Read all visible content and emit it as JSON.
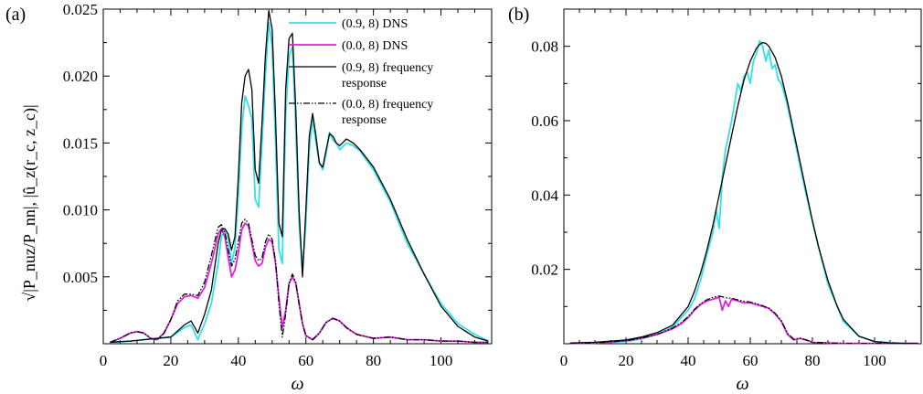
{
  "chart_data": [
    {
      "type": "line",
      "panel_label": "(a)",
      "xlabel": "ω",
      "ylabel": "√|P_nuz/P_nn|, |û_z(r_c, z_c)|",
      "xlim": [
        0,
        115
      ],
      "ylim": [
        0,
        0.025
      ],
      "x_ticks": [
        "0",
        "20",
        "40",
        "60",
        "80",
        "100"
      ],
      "x_tick_values": [
        0,
        20,
        40,
        60,
        80,
        100
      ],
      "y_ticks": [
        "0.005",
        "0.010",
        "0.015",
        "0.020",
        "0.025"
      ],
      "y_tick_values": [
        0.005,
        0.01,
        0.015,
        0.02,
        0.025
      ],
      "legend_placement": "top-right",
      "series": [
        {
          "name": "(0.9, 8) DNS",
          "color": "#33e0e8",
          "style": "solid",
          "x": [
            2,
            8,
            12,
            16,
            20,
            24,
            26,
            28,
            30,
            32,
            34,
            35,
            36,
            37,
            38,
            39,
            40,
            41,
            42,
            43,
            44,
            45,
            46,
            47,
            48,
            49,
            50,
            51,
            52,
            53,
            54,
            55,
            56,
            57,
            58,
            59,
            60,
            61,
            62,
            63,
            64,
            65,
            66,
            67,
            68,
            69,
            70,
            72,
            74,
            76,
            80,
            85,
            90,
            95,
            100,
            105,
            110,
            114
          ],
          "y": [
            0.0001,
            0.0002,
            0.0003,
            0.0004,
            0.0005,
            0.0012,
            0.0014,
            0.0003,
            0.0015,
            0.003,
            0.006,
            0.008,
            0.0084,
            0.0078,
            0.006,
            0.0072,
            0.011,
            0.016,
            0.0185,
            0.0178,
            0.0168,
            0.0108,
            0.0102,
            0.015,
            0.02,
            0.024,
            0.0222,
            0.015,
            0.007,
            0.006,
            0.017,
            0.0215,
            0.0222,
            0.016,
            0.009,
            0.0055,
            0.009,
            0.0145,
            0.0168,
            0.015,
            0.0135,
            0.013,
            0.0142,
            0.0158,
            0.0152,
            0.015,
            0.0145,
            0.015,
            0.0148,
            0.0144,
            0.013,
            0.0106,
            0.0075,
            0.0052,
            0.003,
            0.0015,
            0.0007,
            0.0002
          ]
        },
        {
          "name": "(0.0, 8) DNS",
          "color": "#e020e0",
          "style": "solid",
          "x": [
            2,
            5,
            8,
            10,
            12,
            14,
            16,
            18,
            20,
            22,
            24,
            26,
            28,
            30,
            32,
            34,
            35,
            36,
            37,
            38,
            39,
            40,
            41,
            42,
            43,
            44,
            45,
            46,
            47,
            48,
            49,
            50,
            51,
            52,
            53,
            54,
            55,
            56,
            57,
            58,
            59,
            60,
            62,
            64,
            66,
            68,
            70,
            72,
            75,
            80,
            85,
            90,
            95,
            100,
            105,
            110,
            114
          ],
          "y": [
            0.0001,
            0.0004,
            0.0008,
            0.0009,
            0.0008,
            0.0004,
            0.0003,
            0.0008,
            0.0018,
            0.003,
            0.0035,
            0.0036,
            0.0034,
            0.0042,
            0.006,
            0.0082,
            0.0086,
            0.008,
            0.0065,
            0.005,
            0.0055,
            0.0068,
            0.0085,
            0.009,
            0.0088,
            0.0075,
            0.0062,
            0.0058,
            0.006,
            0.0072,
            0.0078,
            0.0076,
            0.006,
            0.0035,
            0.0012,
            0.0025,
            0.0045,
            0.005,
            0.0045,
            0.003,
            0.0015,
            0.0006,
            0.0003,
            0.0008,
            0.0016,
            0.0019,
            0.0017,
            0.0012,
            0.0007,
            0.0004,
            0.0005,
            0.0003,
            0.0003,
            0.0002,
            0.0002,
            0.0001,
            0.0001
          ]
        },
        {
          "name": "(0.9, 8) frequency response",
          "color": "#000000",
          "style": "solid",
          "x": [
            2,
            8,
            12,
            16,
            20,
            24,
            26,
            28,
            30,
            32,
            34,
            35,
            36,
            37,
            38,
            39,
            40,
            41,
            42,
            43,
            44,
            45,
            46,
            47,
            48,
            49,
            50,
            51,
            52,
            53,
            54,
            55,
            56,
            57,
            58,
            59,
            60,
            61,
            62,
            63,
            64,
            65,
            66,
            67,
            68,
            69,
            70,
            72,
            74,
            76,
            80,
            85,
            90,
            95,
            100,
            105,
            110,
            114
          ],
          "y": [
            0.0001,
            0.0002,
            0.0003,
            0.0004,
            0.0005,
            0.0014,
            0.0017,
            0.0008,
            0.0022,
            0.004,
            0.0075,
            0.0085,
            0.0086,
            0.0082,
            0.007,
            0.008,
            0.0125,
            0.018,
            0.02,
            0.0205,
            0.019,
            0.013,
            0.012,
            0.0165,
            0.0215,
            0.0249,
            0.0235,
            0.017,
            0.009,
            0.008,
            0.019,
            0.0228,
            0.0232,
            0.0175,
            0.01,
            0.005,
            0.01,
            0.0155,
            0.0172,
            0.0155,
            0.0135,
            0.0132,
            0.0145,
            0.0157,
            0.0155,
            0.015,
            0.0148,
            0.0153,
            0.015,
            0.0145,
            0.0132,
            0.0108,
            0.0078,
            0.0052,
            0.0028,
            0.0013,
            0.0005,
            0.0002
          ]
        },
        {
          "name": "(0.0, 8) frequency response",
          "color": "#000000",
          "style": "dashdotdot",
          "x": [
            2,
            5,
            8,
            10,
            12,
            14,
            16,
            18,
            20,
            22,
            24,
            26,
            28,
            30,
            32,
            34,
            35,
            36,
            37,
            38,
            39,
            40,
            41,
            42,
            43,
            44,
            45,
            46,
            47,
            48,
            49,
            50,
            51,
            52,
            53,
            54,
            55,
            56,
            57,
            58,
            59,
            60,
            62,
            64,
            66,
            68,
            70,
            72,
            75,
            80,
            85,
            90,
            95,
            100,
            105,
            110,
            114
          ],
          "y": [
            0.0001,
            0.0004,
            0.0008,
            0.0009,
            0.0008,
            0.0004,
            0.0003,
            0.0008,
            0.0018,
            0.0032,
            0.0037,
            0.0037,
            0.0036,
            0.0046,
            0.0066,
            0.0087,
            0.0089,
            0.0083,
            0.007,
            0.0058,
            0.0063,
            0.0076,
            0.009,
            0.0093,
            0.009,
            0.0078,
            0.0066,
            0.0062,
            0.0064,
            0.0076,
            0.0082,
            0.0078,
            0.0062,
            0.003,
            0.0005,
            0.0022,
            0.0045,
            0.0052,
            0.0046,
            0.003,
            0.0015,
            0.0006,
            0.0003,
            0.0008,
            0.0016,
            0.0019,
            0.0017,
            0.0012,
            0.0007,
            0.0004,
            0.0005,
            0.0003,
            0.0003,
            0.0002,
            0.0002,
            0.0001,
            0.0001
          ]
        }
      ]
    },
    {
      "type": "line",
      "panel_label": "(b)",
      "xlabel": "ω",
      "xlim": [
        0,
        115
      ],
      "ylim": [
        0,
        0.09
      ],
      "x_ticks": [
        "0",
        "20",
        "40",
        "60",
        "80",
        "100"
      ],
      "x_tick_values": [
        0,
        20,
        40,
        60,
        80,
        100
      ],
      "y_ticks": [
        "0.02",
        "0.04",
        "0.06",
        "0.08"
      ],
      "y_tick_values": [
        0.02,
        0.04,
        0.06,
        0.08
      ],
      "series": [
        {
          "name": "(0.9, 8) DNS",
          "color": "#33e0e8",
          "style": "solid",
          "x": [
            2,
            10,
            20,
            25,
            30,
            35,
            40,
            42,
            44,
            46,
            48,
            49,
            50,
            51,
            52,
            53,
            54,
            55,
            56,
            57,
            58,
            59,
            60,
            61,
            62,
            63,
            64,
            65,
            66,
            67,
            68,
            69,
            70,
            72,
            74,
            76,
            78,
            80,
            82,
            85,
            88,
            90,
            95,
            100,
            105,
            110,
            114
          ],
          "y": [
            0.0001,
            0.0002,
            0.0006,
            0.0013,
            0.0025,
            0.0045,
            0.009,
            0.012,
            0.017,
            0.024,
            0.03,
            0.036,
            0.031,
            0.045,
            0.052,
            0.056,
            0.06,
            0.065,
            0.07,
            0.068,
            0.072,
            0.073,
            0.07,
            0.076,
            0.078,
            0.0815,
            0.08,
            0.076,
            0.079,
            0.074,
            0.075,
            0.071,
            0.07,
            0.064,
            0.056,
            0.048,
            0.04,
            0.033,
            0.026,
            0.016,
            0.01,
            0.006,
            0.002,
            0.0006,
            0.0003,
            0.0001,
            0.0001
          ]
        },
        {
          "name": "(0.0, 8) DNS",
          "color": "#e020e0",
          "style": "solid",
          "x": [
            2,
            10,
            20,
            25,
            30,
            35,
            38,
            40,
            42,
            44,
            46,
            48,
            50,
            51,
            52,
            53,
            54,
            56,
            58,
            60,
            62,
            64,
            66,
            68,
            70,
            72,
            74,
            76,
            78,
            80,
            85,
            90,
            95,
            100,
            105,
            110,
            114
          ],
          "y": [
            0.0001,
            0.0002,
            0.0008,
            0.0015,
            0.0025,
            0.004,
            0.0055,
            0.007,
            0.009,
            0.0105,
            0.0115,
            0.012,
            0.0125,
            0.009,
            0.0115,
            0.01,
            0.012,
            0.0115,
            0.011,
            0.011,
            0.0105,
            0.01,
            0.0095,
            0.008,
            0.006,
            0.0025,
            0.001,
            0.0014,
            0.001,
            0.0004,
            0.0002,
            0.0001,
            0.0001,
            0.0001,
            0.0001,
            0.0001,
            0.0001
          ]
        },
        {
          "name": "(0.9, 8) frequency response",
          "color": "#000000",
          "style": "solid",
          "x": [
            2,
            10,
            20,
            25,
            30,
            35,
            40,
            42,
            44,
            46,
            48,
            50,
            52,
            54,
            56,
            58,
            60,
            62,
            63,
            64,
            65,
            66,
            68,
            70,
            72,
            74,
            76,
            78,
            80,
            82,
            85,
            88,
            90,
            95,
            100,
            105,
            110,
            114
          ],
          "y": [
            0.0002,
            0.0004,
            0.001,
            0.0018,
            0.003,
            0.005,
            0.01,
            0.014,
            0.019,
            0.025,
            0.032,
            0.04,
            0.048,
            0.056,
            0.064,
            0.071,
            0.076,
            0.0795,
            0.0805,
            0.081,
            0.0808,
            0.08,
            0.077,
            0.072,
            0.065,
            0.057,
            0.049,
            0.041,
            0.033,
            0.026,
            0.017,
            0.01,
            0.0065,
            0.002,
            0.0006,
            0.0002,
            0.0001,
            0.0001
          ]
        },
        {
          "name": "(0.0, 8) frequency response",
          "color": "#000000",
          "style": "dashdotdot",
          "x": [
            2,
            10,
            20,
            25,
            30,
            35,
            38,
            40,
            42,
            44,
            46,
            48,
            50,
            52,
            54,
            56,
            58,
            60,
            62,
            64,
            66,
            68,
            70,
            72,
            74,
            76,
            78,
            80,
            85,
            90,
            95,
            100,
            105,
            110,
            114
          ],
          "y": [
            0.0001,
            0.0002,
            0.0008,
            0.0015,
            0.0025,
            0.0042,
            0.0058,
            0.0073,
            0.0092,
            0.0108,
            0.0118,
            0.0125,
            0.0128,
            0.0124,
            0.0122,
            0.0118,
            0.0114,
            0.0112,
            0.0108,
            0.0102,
            0.0096,
            0.0082,
            0.0062,
            0.0028,
            0.0012,
            0.0015,
            0.001,
            0.0004,
            0.0002,
            0.0001,
            0.0001,
            0.0001,
            0.0001,
            0.0001,
            0.0001
          ]
        }
      ]
    }
  ],
  "legend": [
    {
      "text": "(0.9, 8) DNS",
      "color": "#33e0e8",
      "style": "solid"
    },
    {
      "text": "(0.0, 8) DNS",
      "color": "#e020e0",
      "style": "solid"
    },
    {
      "text": "(0.9, 8) frequency",
      "text2": "response",
      "color": "#000000",
      "style": "solid"
    },
    {
      "text": "(0.0, 8) frequency",
      "text2": "response",
      "color": "#000000",
      "style": "dashdotdot"
    }
  ]
}
